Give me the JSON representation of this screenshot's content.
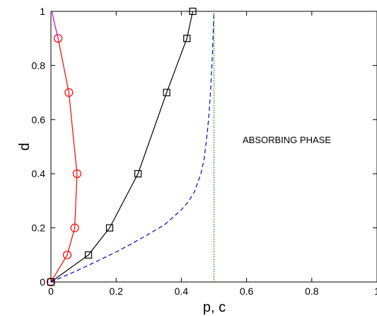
{
  "chart_data": {
    "type": "line",
    "xlabel": "p, c",
    "ylabel": "d",
    "xlim": [
      0,
      1
    ],
    "ylim": [
      0,
      1
    ],
    "x_ticks": [
      0,
      0.2,
      0.4,
      0.6,
      0.8,
      1
    ],
    "y_ticks": [
      0,
      0.2,
      0.4,
      0.6,
      0.8,
      1
    ],
    "x_tick_labels": [
      "0",
      "0.2",
      "0.4",
      "0.6",
      "0.8",
      "1"
    ],
    "y_tick_labels": [
      "0",
      "0.2",
      "0.4",
      "0.6",
      "0.8",
      "1"
    ],
    "grid": false,
    "annotation": "ABSORBING PHASE",
    "series": [
      {
        "color": "#ff0000",
        "marker": "circle",
        "style": "solid",
        "points": [
          [
            0,
            0
          ],
          [
            0.05,
            0.1
          ],
          [
            0.073,
            0.2
          ],
          [
            0.08,
            0.4
          ],
          [
            0.055,
            0.7
          ],
          [
            0.022,
            0.9
          ]
        ]
      },
      {
        "color": "#cc00cc",
        "marker": "none",
        "style": "solid",
        "points": [
          [
            0.022,
            0.9
          ],
          [
            0.012,
            0.95
          ],
          [
            0.003,
            1.0
          ]
        ]
      },
      {
        "color": "#000000",
        "marker": "square",
        "style": "solid",
        "points": [
          [
            0,
            0
          ],
          [
            0.115,
            0.1
          ],
          [
            0.18,
            0.2
          ],
          [
            0.267,
            0.4
          ],
          [
            0.355,
            0.7
          ],
          [
            0.417,
            0.9
          ],
          [
            0.435,
            1.0
          ]
        ]
      },
      {
        "color": "#0000cc",
        "marker": "none",
        "style": "dashed",
        "points": [
          [
            0,
            0
          ],
          [
            0.05,
            0.026
          ],
          [
            0.1,
            0.053
          ],
          [
            0.15,
            0.082
          ],
          [
            0.2,
            0.111
          ],
          [
            0.25,
            0.143
          ],
          [
            0.3,
            0.177
          ],
          [
            0.35,
            0.213
          ],
          [
            0.4,
            0.267
          ],
          [
            0.42,
            0.294
          ],
          [
            0.44,
            0.333
          ],
          [
            0.46,
            0.4
          ],
          [
            0.47,
            0.455
          ],
          [
            0.48,
            0.556
          ],
          [
            0.485,
            0.625
          ],
          [
            0.49,
            0.714
          ],
          [
            0.495,
            0.833
          ],
          [
            0.5,
            1.0
          ]
        ]
      },
      {
        "color": "#008800",
        "marker": "none",
        "style": "dotted",
        "points": [
          [
            0.5,
            0
          ],
          [
            0.5,
            1
          ]
        ]
      }
    ]
  }
}
